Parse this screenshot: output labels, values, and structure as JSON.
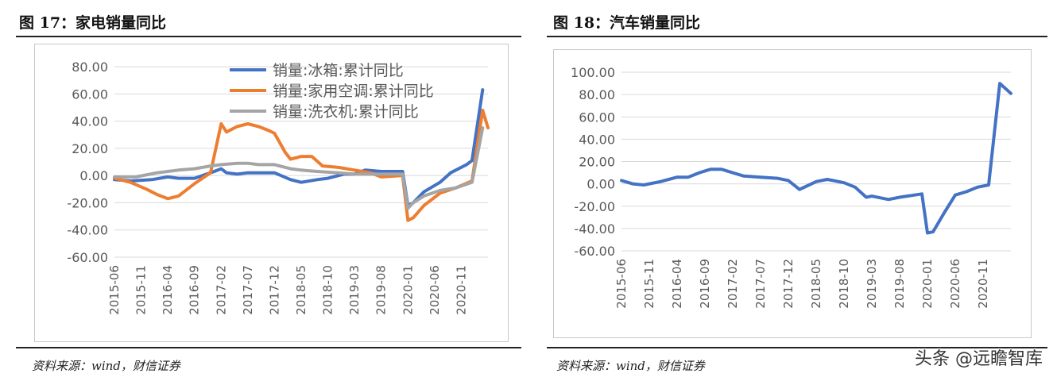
{
  "left_panel": {
    "title": "图 17：家电销量同比",
    "source": "资料来源：wind，财信证券"
  },
  "right_panel": {
    "title": "图 18：汽车销量同比",
    "source": "资料来源：wind，财信证券"
  },
  "watermark": "头条 @远瞻智库",
  "chart_data": [
    {
      "type": "line",
      "title": "",
      "xlabel": "",
      "ylabel": "",
      "ylim": [
        -60,
        80
      ],
      "yticks": [
        "80.00",
        "60.00",
        "40.00",
        "20.00",
        "0.00",
        "-20.00",
        "-40.00",
        "-60.00"
      ],
      "ytick_values": [
        80,
        60,
        40,
        20,
        0,
        -20,
        -40,
        -60
      ],
      "x_start": "2015-06",
      "x_end": "2021-04",
      "x_tick_labels": [
        "2015-06",
        "2015-11",
        "2016-04",
        "2016-09",
        "2017-02",
        "2017-07",
        "2017-12",
        "2018-05",
        "2018-10",
        "2019-03",
        "2019-08",
        "2020-01",
        "2020-06",
        "2020-11"
      ],
      "grid": true,
      "legend_position": "top-right",
      "series": [
        {
          "name": "销量:冰箱:累计同比",
          "color": "#4472c4",
          "points": [
            [
              "2015-06",
              -3
            ],
            [
              "2015-09",
              -4
            ],
            [
              "2016-01",
              -3
            ],
            [
              "2016-04",
              -1
            ],
            [
              "2016-06",
              -2
            ],
            [
              "2016-09",
              -2
            ],
            [
              "2016-12",
              2
            ],
            [
              "2017-02",
              5
            ],
            [
              "2017-03",
              2
            ],
            [
              "2017-05",
              1
            ],
            [
              "2017-07",
              2
            ],
            [
              "2017-12",
              2
            ],
            [
              "2018-03",
              -3
            ],
            [
              "2018-05",
              -5
            ],
            [
              "2018-08",
              -3
            ],
            [
              "2018-10",
              -2
            ],
            [
              "2019-01",
              1
            ],
            [
              "2019-03",
              1
            ],
            [
              "2019-05",
              4
            ],
            [
              "2019-08",
              3
            ],
            [
              "2019-12",
              3
            ],
            [
              "2020-01",
              -22
            ],
            [
              "2020-02",
              -20
            ],
            [
              "2020-04",
              -12
            ],
            [
              "2020-07",
              -5
            ],
            [
              "2020-09",
              2
            ],
            [
              "2020-12",
              8
            ],
            [
              "2021-01",
              11
            ],
            [
              "2021-03",
              63
            ]
          ]
        },
        {
          "name": "销量:家用空调:累计同比",
          "color": "#ed7d31",
          "points": [
            [
              "2015-06",
              -2
            ],
            [
              "2015-09",
              -5
            ],
            [
              "2015-12",
              -10
            ],
            [
              "2016-02",
              -14
            ],
            [
              "2016-04",
              -17
            ],
            [
              "2016-06",
              -15
            ],
            [
              "2016-09",
              -6
            ],
            [
              "2016-12",
              2
            ],
            [
              "2017-02",
              38
            ],
            [
              "2017-03",
              32
            ],
            [
              "2017-05",
              36
            ],
            [
              "2017-07",
              38
            ],
            [
              "2017-09",
              36
            ],
            [
              "2017-11",
              33
            ],
            [
              "2017-12",
              31
            ],
            [
              "2018-02",
              17
            ],
            [
              "2018-03",
              12
            ],
            [
              "2018-05",
              14
            ],
            [
              "2018-07",
              14
            ],
            [
              "2018-09",
              7
            ],
            [
              "2018-12",
              6
            ],
            [
              "2019-03",
              4
            ],
            [
              "2019-06",
              2
            ],
            [
              "2019-08",
              -1
            ],
            [
              "2019-12",
              0
            ],
            [
              "2020-01",
              -33
            ],
            [
              "2020-02",
              -31
            ],
            [
              "2020-04",
              -22
            ],
            [
              "2020-07",
              -13
            ],
            [
              "2020-10",
              -9
            ],
            [
              "2021-01",
              -4
            ],
            [
              "2021-03",
              48
            ],
            [
              "2021-04",
              35
            ]
          ]
        },
        {
          "name": "销量:洗衣机:累计同比",
          "color": "#a5a5a5",
          "points": [
            [
              "2015-06",
              -1
            ],
            [
              "2015-10",
              -1
            ],
            [
              "2016-02",
              2
            ],
            [
              "2016-04",
              3
            ],
            [
              "2016-06",
              4
            ],
            [
              "2016-09",
              5
            ],
            [
              "2016-12",
              7
            ],
            [
              "2017-02",
              8
            ],
            [
              "2017-05",
              9
            ],
            [
              "2017-07",
              9
            ],
            [
              "2017-09",
              8
            ],
            [
              "2017-12",
              8
            ],
            [
              "2018-03",
              5
            ],
            [
              "2018-05",
              4
            ],
            [
              "2018-08",
              3
            ],
            [
              "2018-12",
              2
            ],
            [
              "2019-03",
              1
            ],
            [
              "2019-06",
              1
            ],
            [
              "2019-08",
              1
            ],
            [
              "2019-12",
              1
            ],
            [
              "2020-01",
              -24
            ],
            [
              "2020-02",
              -20
            ],
            [
              "2020-04",
              -15
            ],
            [
              "2020-07",
              -11
            ],
            [
              "2020-10",
              -9
            ],
            [
              "2021-01",
              -5
            ],
            [
              "2021-03",
              35
            ]
          ]
        }
      ]
    },
    {
      "type": "line",
      "title": "",
      "xlabel": "",
      "ylabel": "",
      "ylim": [
        -60,
        100
      ],
      "yticks": [
        "100.00",
        "80.00",
        "60.00",
        "40.00",
        "20.00",
        "0.00",
        "-20.00",
        "-40.00",
        "-60.00"
      ],
      "ytick_values": [
        100,
        80,
        60,
        40,
        20,
        0,
        -20,
        -40,
        -60
      ],
      "x_start": "2015-06",
      "x_end": "2021-04",
      "x_tick_labels": [
        "2015-06",
        "2015-11",
        "2016-04",
        "2016-09",
        "2017-02",
        "2017-07",
        "2017-12",
        "2018-05",
        "2018-10",
        "2019-03",
        "2019-08",
        "2020-01",
        "2020-06",
        "2020-11"
      ],
      "grid": true,
      "legend_position": "none",
      "series": [
        {
          "name": "",
          "color": "#4472c4",
          "points": [
            [
              "2015-06",
              3
            ],
            [
              "2015-08",
              0
            ],
            [
              "2015-10",
              -1
            ],
            [
              "2016-01",
              2
            ],
            [
              "2016-04",
              6
            ],
            [
              "2016-06",
              6
            ],
            [
              "2016-08",
              10
            ],
            [
              "2016-10",
              13
            ],
            [
              "2016-12",
              13
            ],
            [
              "2017-02",
              10
            ],
            [
              "2017-04",
              7
            ],
            [
              "2017-07",
              6
            ],
            [
              "2017-10",
              5
            ],
            [
              "2017-12",
              3
            ],
            [
              "2018-02",
              -5
            ],
            [
              "2018-05",
              2
            ],
            [
              "2018-07",
              4
            ],
            [
              "2018-10",
              1
            ],
            [
              "2018-12",
              -3
            ],
            [
              "2019-02",
              -12
            ],
            [
              "2019-03",
              -11
            ],
            [
              "2019-06",
              -14
            ],
            [
              "2019-08",
              -12
            ],
            [
              "2019-12",
              -9
            ],
            [
              "2020-01",
              -44
            ],
            [
              "2020-02",
              -43
            ],
            [
              "2020-04",
              -26
            ],
            [
              "2020-06",
              -10
            ],
            [
              "2020-08",
              -7
            ],
            [
              "2020-10",
              -3
            ],
            [
              "2020-12",
              -1
            ],
            [
              "2021-02",
              90
            ],
            [
              "2021-04",
              81
            ]
          ]
        }
      ]
    }
  ]
}
